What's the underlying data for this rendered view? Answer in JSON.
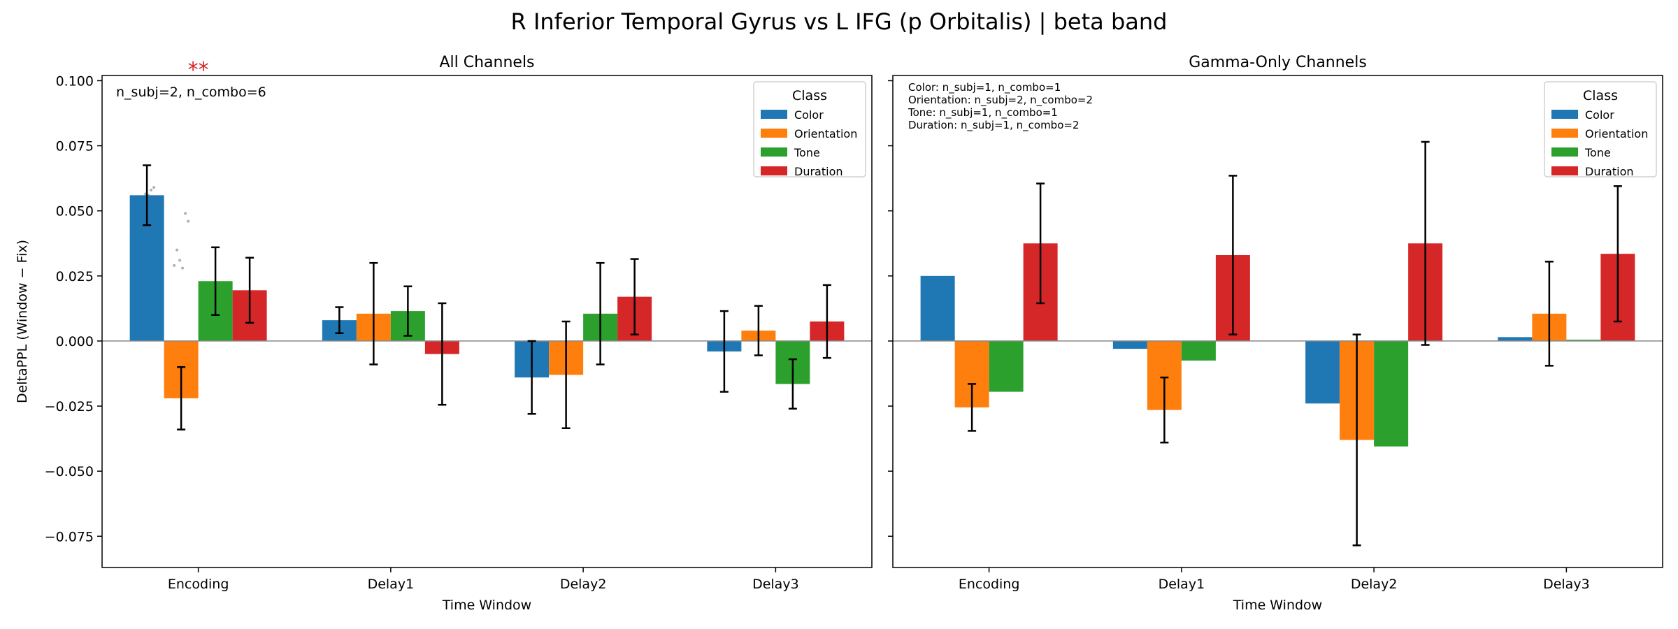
{
  "figure": {
    "suptitle": "R Inferior Temporal Gyrus vs L IFG (p Orbitalis)  |  beta band"
  },
  "colors": {
    "Color": "#1f77b4",
    "Orientation": "#ff7f0e",
    "Tone": "#2ca02c",
    "Duration": "#d62728",
    "significance": "#d62728",
    "points": "#b0b0b0"
  },
  "chart_data": [
    {
      "type": "bar",
      "title": "All Channels",
      "xlabel": "Time Window",
      "ylabel": "DeltaPPL (Window − Fix)",
      "ylim": [
        -0.087,
        0.102
      ],
      "yticks": [
        "0.100",
        "0.075",
        "0.050",
        "0.025",
        "0.000",
        "−0.025",
        "−0.050",
        "−0.075"
      ],
      "ytick_values": [
        0.1,
        0.075,
        0.05,
        0.025,
        0.0,
        -0.025,
        -0.05,
        -0.075
      ],
      "categories": [
        "Encoding",
        "Delay1",
        "Delay2",
        "Delay3"
      ],
      "legend": {
        "title": "Class",
        "placement": "top-right"
      },
      "annotation": "n_subj=2, n_combo=6",
      "significance": [
        {
          "category": "Encoding",
          "label": "**"
        }
      ],
      "series": [
        {
          "name": "Color",
          "values": [
            0.056,
            0.008,
            -0.014,
            -0.004
          ],
          "err": [
            0.0115,
            0.005,
            0.014,
            0.0155
          ]
        },
        {
          "name": "Orientation",
          "values": [
            -0.022,
            0.0105,
            -0.013,
            0.004
          ],
          "err": [
            0.012,
            0.0195,
            0.0205,
            0.0095
          ]
        },
        {
          "name": "Tone",
          "values": [
            0.023,
            0.0115,
            0.0105,
            -0.0165
          ],
          "err": [
            0.013,
            0.0095,
            0.0195,
            0.0095
          ]
        },
        {
          "name": "Duration",
          "values": [
            0.0195,
            -0.005,
            0.017,
            0.0075
          ],
          "err": [
            0.0125,
            0.0195,
            0.0145,
            0.014
          ]
        }
      ],
      "points": [
        [
          [
            0.049,
            0.053,
            0.0565,
            0.056,
            0.058,
            0.059
          ],
          [
            0.029,
            0.035,
            0.031,
            0.028,
            0.049,
            0.046
          ]
        ]
      ]
    },
    {
      "type": "bar",
      "title": "Gamma-Only Channels",
      "xlabel": "Time Window",
      "ylabel": "",
      "ylim": [
        -0.087,
        0.102
      ],
      "categories": [
        "Encoding",
        "Delay1",
        "Delay2",
        "Delay3"
      ],
      "legend": {
        "title": "Class",
        "placement": "top-right"
      },
      "annotation_lines": [
        "Color: n_subj=1, n_combo=1",
        "Orientation: n_subj=2, n_combo=2",
        "Tone: n_subj=1, n_combo=1",
        "Duration: n_subj=1, n_combo=2"
      ],
      "series": [
        {
          "name": "Color",
          "values": [
            0.025,
            -0.003,
            -0.024,
            0.0015
          ],
          "err": [
            0,
            0,
            0,
            0
          ]
        },
        {
          "name": "Orientation",
          "values": [
            -0.0255,
            -0.0265,
            -0.038,
            0.0105
          ],
          "err": [
            0.009,
            0.0125,
            0.0405,
            0.02
          ]
        },
        {
          "name": "Tone",
          "values": [
            -0.0195,
            -0.0075,
            -0.0405,
            0.0005
          ],
          "err": [
            0,
            0,
            0,
            0
          ]
        },
        {
          "name": "Duration",
          "values": [
            0.0375,
            0.033,
            0.0375,
            0.0335
          ],
          "err": [
            0.023,
            0.0305,
            0.039,
            0.026
          ]
        }
      ]
    }
  ]
}
